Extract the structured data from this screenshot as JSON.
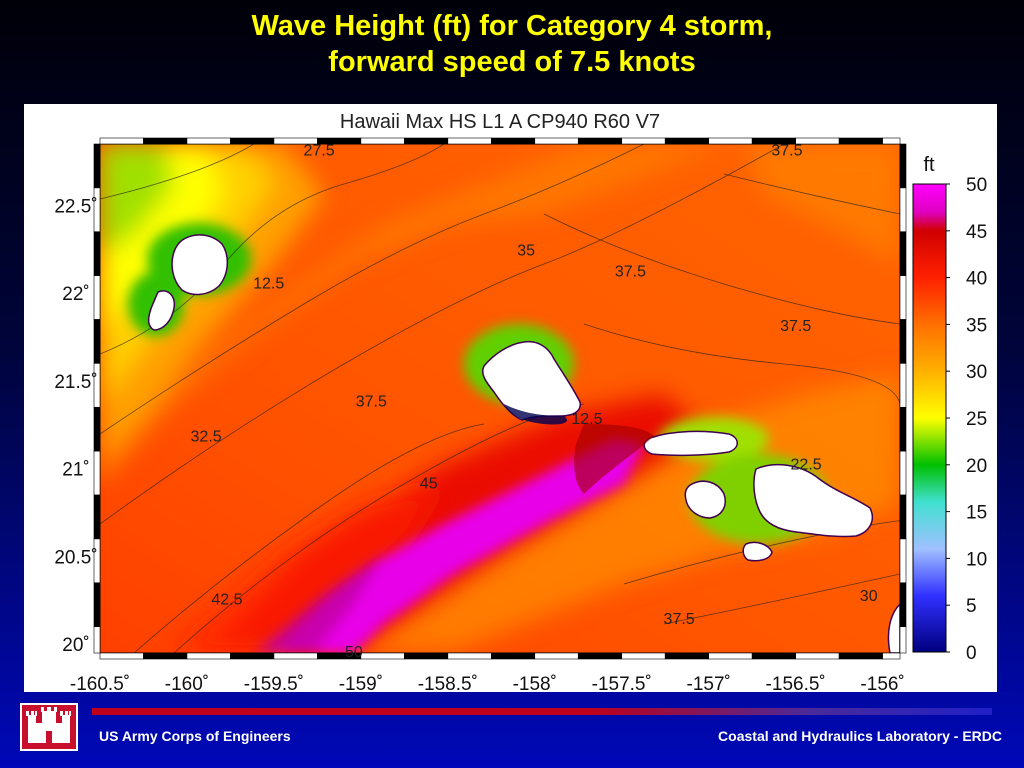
{
  "slide": {
    "title_line1": "Wave Height (ft) for Category 4 storm,",
    "title_line2": "forward speed of 7.5 knots"
  },
  "footer": {
    "left_text": "US Army Corps of Engineers",
    "right_text": "Coastal and Hydraulics Laboratory - ERDC",
    "logo_icon": "castle-icon"
  },
  "chart_data": {
    "type": "heatmap",
    "title": "Hawaii Max HS L1 A CP940 R60 V7",
    "colorbar": {
      "label": "ft",
      "range": [
        0,
        50
      ],
      "ticks": [
        "50",
        "45",
        "40",
        "35",
        "30",
        "25",
        "20",
        "15",
        "10",
        "5",
        "0"
      ],
      "colors": [
        "#ff00ff",
        "#e00000",
        "#ff3000",
        "#ff8000",
        "#ffc000",
        "#ffff00",
        "#00c000",
        "#40e0e0",
        "#6080ff",
        "#0000ff",
        "#000080"
      ]
    },
    "x_range": [
      -160.5,
      -155.9
    ],
    "y_range": [
      19.95,
      22.85
    ],
    "x_ticks": [
      {
        "value": -160.5,
        "label": "-160.5˚"
      },
      {
        "value": -160.0,
        "label": "-160˚"
      },
      {
        "value": -159.5,
        "label": "-159.5˚"
      },
      {
        "value": -159.0,
        "label": "-159˚"
      },
      {
        "value": -158.5,
        "label": "-158.5˚"
      },
      {
        "value": -158.0,
        "label": "-158˚"
      },
      {
        "value": -157.5,
        "label": "-157.5˚"
      },
      {
        "value": -157.0,
        "label": "-157˚"
      },
      {
        "value": -156.5,
        "label": "-156.5˚"
      },
      {
        "value": -156.0,
        "label": "-156˚"
      }
    ],
    "y_ticks": [
      {
        "value": 22.5,
        "label": "22.5˚"
      },
      {
        "value": 22.0,
        "label": "22˚"
      },
      {
        "value": 21.5,
        "label": "21.5˚"
      },
      {
        "value": 21.0,
        "label": "21˚"
      },
      {
        "value": 20.5,
        "label": "20.5˚"
      },
      {
        "value": 20.0,
        "label": "20˚"
      }
    ],
    "contour_labels": [
      {
        "text": "27.5",
        "lon": -159.24,
        "lat": 22.82
      },
      {
        "text": "37.5",
        "lon": -156.55,
        "lat": 22.82
      },
      {
        "text": "35",
        "lon": -158.05,
        "lat": 22.25
      },
      {
        "text": "37.5",
        "lon": -157.45,
        "lat": 22.13
      },
      {
        "text": "12.5",
        "lon": -159.53,
        "lat": 22.06
      },
      {
        "text": "37.5",
        "lon": -156.5,
        "lat": 21.82
      },
      {
        "text": "37.5",
        "lon": -158.94,
        "lat": 21.39
      },
      {
        "text": "12.5",
        "lon": -157.7,
        "lat": 21.29
      },
      {
        "text": "32.5",
        "lon": -159.89,
        "lat": 21.19
      },
      {
        "text": "22.5",
        "lon": -156.44,
        "lat": 21.03
      },
      {
        "text": "45",
        "lon": -158.61,
        "lat": 20.92
      },
      {
        "text": "42.5",
        "lon": -159.77,
        "lat": 20.26
      },
      {
        "text": "30",
        "lon": -156.08,
        "lat": 20.28
      },
      {
        "text": "37.5",
        "lon": -157.17,
        "lat": 20.15
      },
      {
        "text": "50",
        "lon": -159.04,
        "lat": 19.96
      }
    ]
  }
}
